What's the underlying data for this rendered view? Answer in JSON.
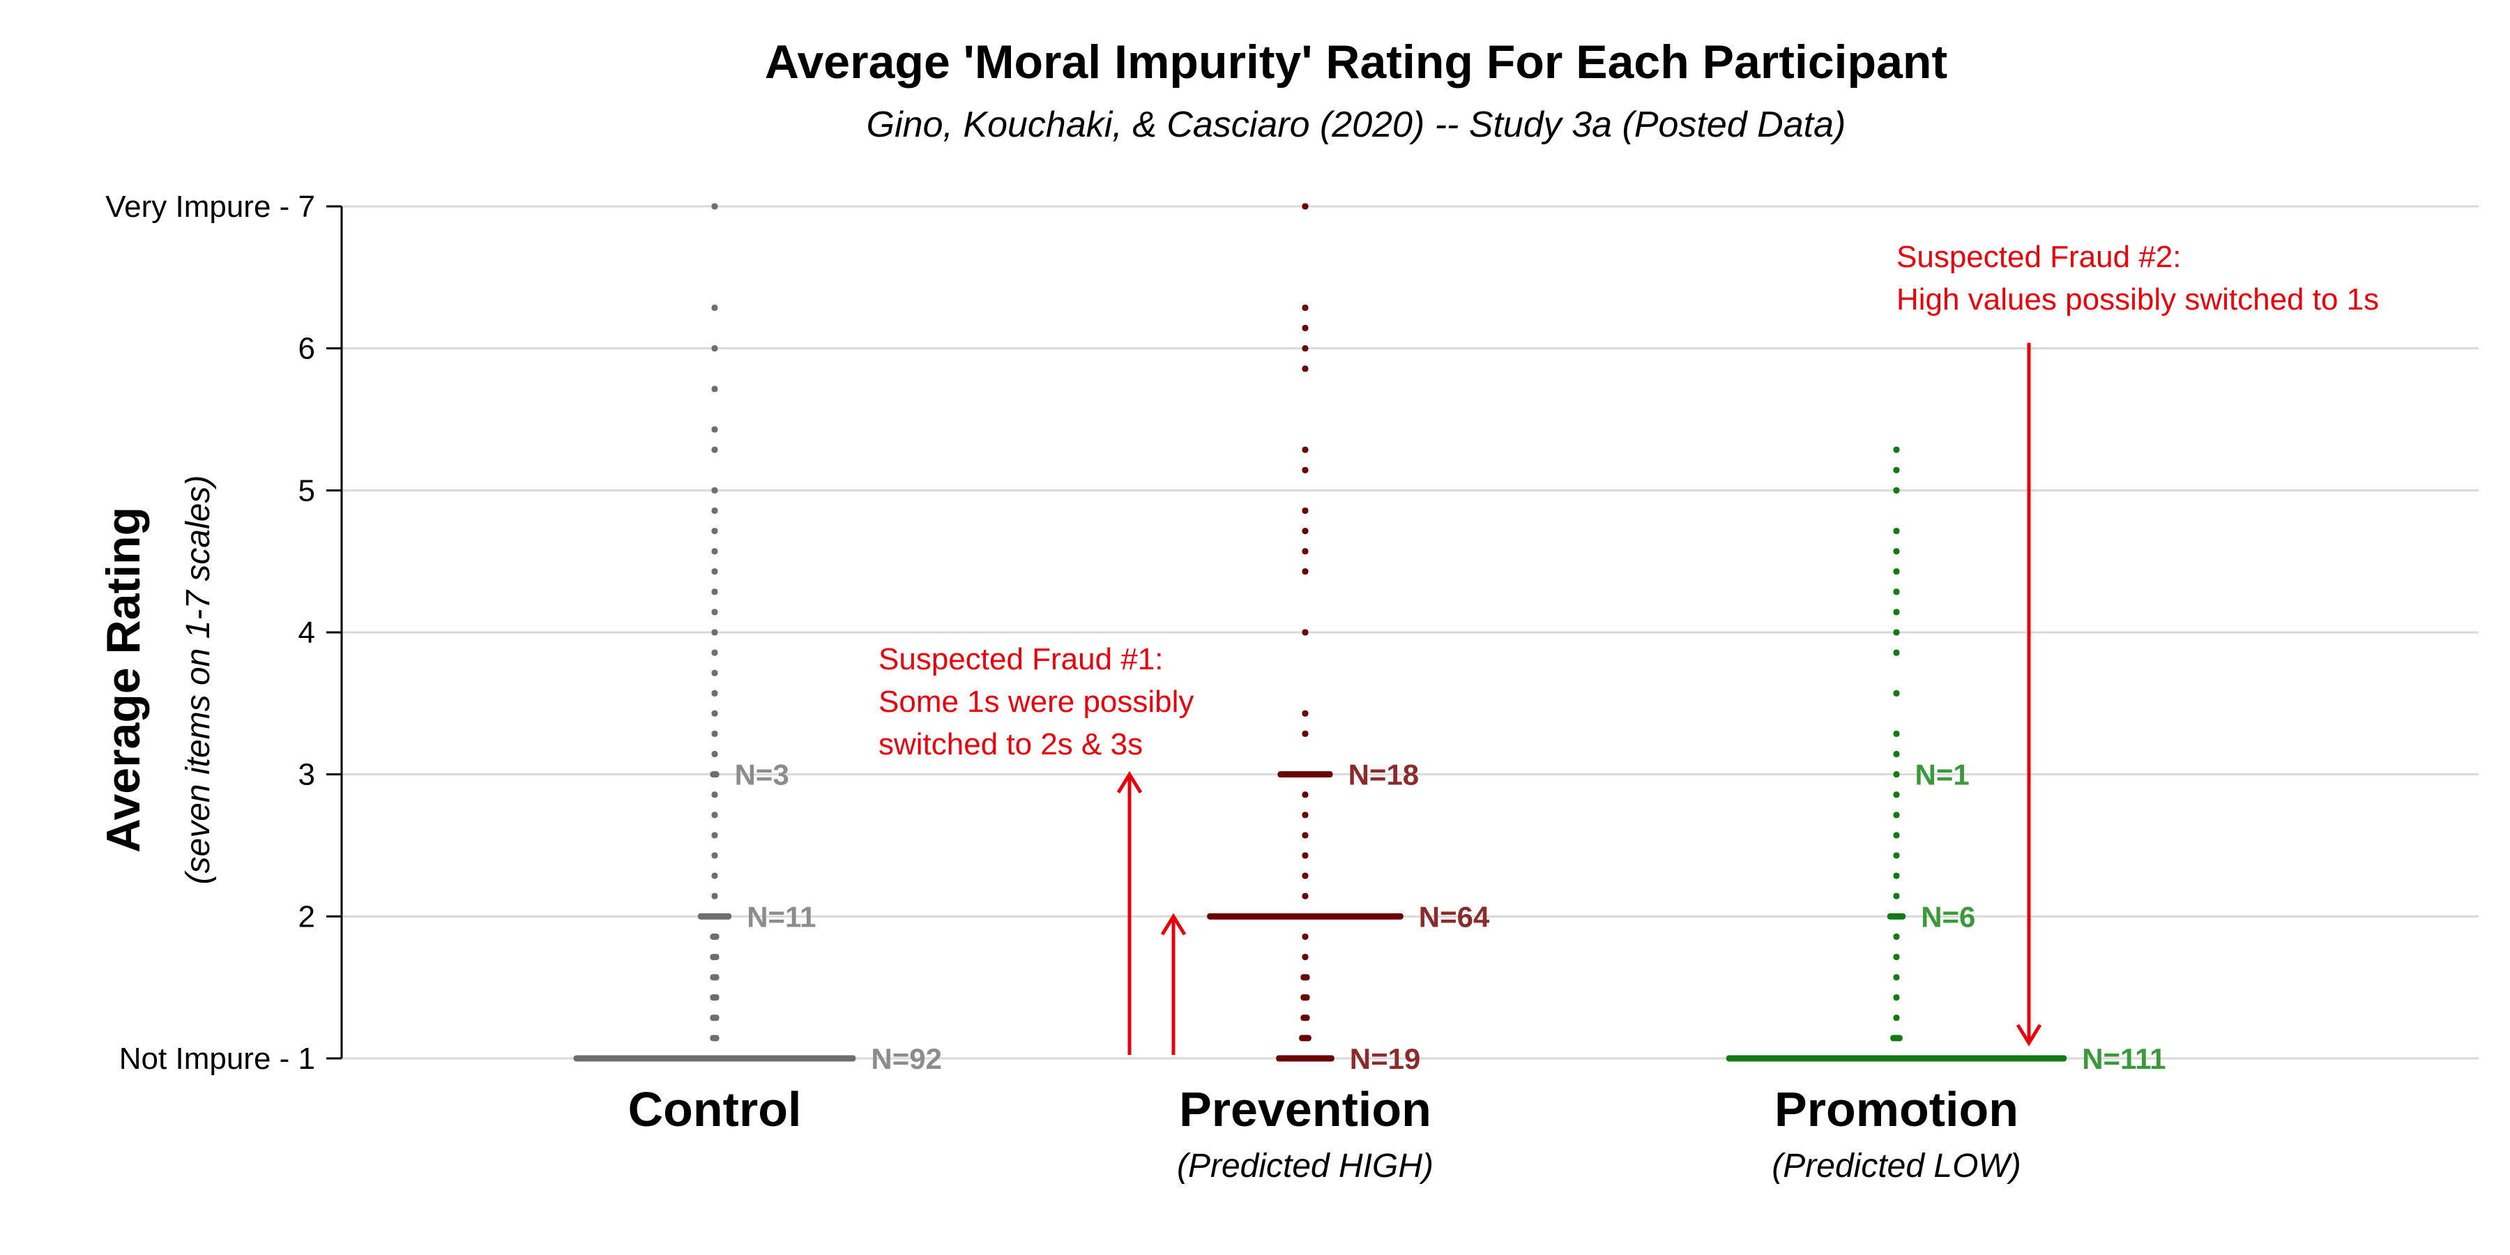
{
  "chart_data": {
    "type": "scatter",
    "title": "Average 'Moral Impurity' Rating For Each Participant",
    "subtitle": "Gino, Kouchaki, & Casciaro (2020) -- Study 3a (Posted Data)",
    "ylabel": "Average Rating",
    "ylabel_sub": "(seven items on 1-7 scales)",
    "ylim": [
      1,
      7
    ],
    "yticks": [
      {
        "value": 7,
        "label": "Very Impure - 7"
      },
      {
        "value": 6,
        "label": "6"
      },
      {
        "value": 5,
        "label": "5"
      },
      {
        "value": 4,
        "label": "4"
      },
      {
        "value": 3,
        "label": "3"
      },
      {
        "value": 2,
        "label": "2"
      },
      {
        "value": 1,
        "label": "Not Impure - 1"
      }
    ],
    "grid": true,
    "series": [
      {
        "name": "Control",
        "sublabel": "",
        "color": "#6e6e6e",
        "label_color": "#8c8c8c",
        "points": [
          {
            "y": 1.0,
            "n": 92
          },
          {
            "y": 1.143,
            "n": 3
          },
          {
            "y": 1.286,
            "n": 3
          },
          {
            "y": 1.429,
            "n": 3
          },
          {
            "y": 1.571,
            "n": 3
          },
          {
            "y": 1.714,
            "n": 3
          },
          {
            "y": 1.857,
            "n": 3
          },
          {
            "y": 2.0,
            "n": 11
          },
          {
            "y": 2.143,
            "n": 2
          },
          {
            "y": 2.286,
            "n": 2
          },
          {
            "y": 2.429,
            "n": 2
          },
          {
            "y": 2.571,
            "n": 1
          },
          {
            "y": 2.714,
            "n": 1
          },
          {
            "y": 2.857,
            "n": 1
          },
          {
            "y": 3.0,
            "n": 3
          },
          {
            "y": 3.143,
            "n": 2
          },
          {
            "y": 3.286,
            "n": 1
          },
          {
            "y": 3.429,
            "n": 1
          },
          {
            "y": 3.571,
            "n": 1
          },
          {
            "y": 3.714,
            "n": 1
          },
          {
            "y": 3.857,
            "n": 1
          },
          {
            "y": 4.0,
            "n": 1
          },
          {
            "y": 4.143,
            "n": 1
          },
          {
            "y": 4.286,
            "n": 1
          },
          {
            "y": 4.429,
            "n": 1
          },
          {
            "y": 4.571,
            "n": 1
          },
          {
            "y": 4.714,
            "n": 1
          },
          {
            "y": 4.857,
            "n": 1
          },
          {
            "y": 5.0,
            "n": 1
          },
          {
            "y": 5.286,
            "n": 1
          },
          {
            "y": 5.429,
            "n": 1
          },
          {
            "y": 5.714,
            "n": 1
          },
          {
            "y": 6.0,
            "n": 1
          },
          {
            "y": 6.286,
            "n": 1
          },
          {
            "y": 7.0,
            "n": 1
          }
        ],
        "labels": [
          {
            "y": 1,
            "text": "N=92"
          },
          {
            "y": 2,
            "text": "N=11"
          },
          {
            "y": 3,
            "text": "N=3"
          }
        ]
      },
      {
        "name": "Prevention",
        "sublabel": "(Predicted HIGH)",
        "color": "#6b0000",
        "label_color": "#8b2b2b",
        "points": [
          {
            "y": 1.0,
            "n": 19
          },
          {
            "y": 1.143,
            "n": 4
          },
          {
            "y": 1.286,
            "n": 3
          },
          {
            "y": 1.429,
            "n": 3
          },
          {
            "y": 1.571,
            "n": 3
          },
          {
            "y": 1.714,
            "n": 2
          },
          {
            "y": 1.857,
            "n": 2
          },
          {
            "y": 2.0,
            "n": 64
          },
          {
            "y": 2.143,
            "n": 1
          },
          {
            "y": 2.286,
            "n": 2
          },
          {
            "y": 2.429,
            "n": 2
          },
          {
            "y": 2.571,
            "n": 2
          },
          {
            "y": 2.714,
            "n": 2
          },
          {
            "y": 2.857,
            "n": 2
          },
          {
            "y": 3.0,
            "n": 18
          },
          {
            "y": 3.286,
            "n": 1
          },
          {
            "y": 3.429,
            "n": 1
          },
          {
            "y": 4.0,
            "n": 1
          },
          {
            "y": 4.429,
            "n": 1
          },
          {
            "y": 4.571,
            "n": 1
          },
          {
            "y": 4.714,
            "n": 1
          },
          {
            "y": 4.857,
            "n": 1
          },
          {
            "y": 5.143,
            "n": 1
          },
          {
            "y": 5.286,
            "n": 1
          },
          {
            "y": 5.857,
            "n": 1
          },
          {
            "y": 6.0,
            "n": 1
          },
          {
            "y": 6.143,
            "n": 1
          },
          {
            "y": 6.286,
            "n": 1
          },
          {
            "y": 7.0,
            "n": 1
          }
        ],
        "labels": [
          {
            "y": 1,
            "text": "N=19"
          },
          {
            "y": 2,
            "text": "N=64"
          },
          {
            "y": 3,
            "text": "N=18"
          }
        ]
      },
      {
        "name": "Promotion",
        "sublabel": "(Predicted LOW)",
        "color": "#127a12",
        "label_color": "#3a9a3a",
        "points": [
          {
            "y": 1.0,
            "n": 111
          },
          {
            "y": 1.143,
            "n": 4
          },
          {
            "y": 1.286,
            "n": 2
          },
          {
            "y": 1.429,
            "n": 2
          },
          {
            "y": 1.571,
            "n": 2
          },
          {
            "y": 1.714,
            "n": 2
          },
          {
            "y": 1.857,
            "n": 2
          },
          {
            "y": 2.0,
            "n": 6
          },
          {
            "y": 2.143,
            "n": 2
          },
          {
            "y": 2.286,
            "n": 2
          },
          {
            "y": 2.429,
            "n": 2
          },
          {
            "y": 2.571,
            "n": 2
          },
          {
            "y": 2.714,
            "n": 2
          },
          {
            "y": 2.857,
            "n": 2
          },
          {
            "y": 3.0,
            "n": 1
          },
          {
            "y": 3.143,
            "n": 1
          },
          {
            "y": 3.286,
            "n": 1
          },
          {
            "y": 3.571,
            "n": 1
          },
          {
            "y": 3.857,
            "n": 1
          },
          {
            "y": 4.0,
            "n": 1
          },
          {
            "y": 4.143,
            "n": 1
          },
          {
            "y": 4.286,
            "n": 1
          },
          {
            "y": 4.429,
            "n": 1
          },
          {
            "y": 4.571,
            "n": 1
          },
          {
            "y": 4.714,
            "n": 1
          },
          {
            "y": 5.0,
            "n": 1
          },
          {
            "y": 5.143,
            "n": 1
          },
          {
            "y": 5.286,
            "n": 1
          }
        ],
        "labels": [
          {
            "y": 1,
            "text": "N=111"
          },
          {
            "y": 2,
            "text": "N=6"
          },
          {
            "y": 3,
            "text": "N=1"
          }
        ]
      }
    ],
    "annotations": [
      {
        "text": [
          "Suspected Fraud #1:",
          "Some 1s were possibly",
          "switched to 2s & 3s"
        ],
        "color": "#e8000b",
        "arrows": [
          {
            "from": 1,
            "to": 3
          },
          {
            "from": 1,
            "to": 2
          }
        ]
      },
      {
        "text": [
          "Suspected Fraud #2:",
          "High values possibly switched to 1s"
        ],
        "color": "#e8000b",
        "arrows": [
          {
            "from": 6,
            "to": 1
          }
        ]
      }
    ]
  }
}
